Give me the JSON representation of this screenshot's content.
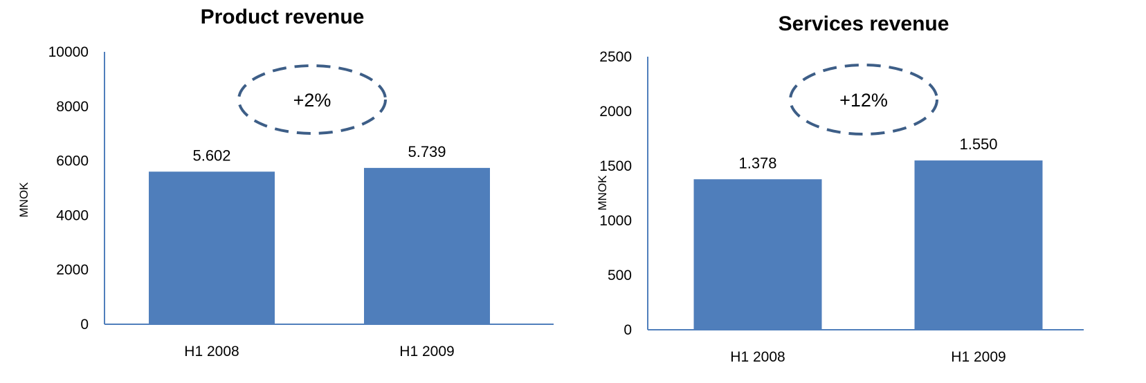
{
  "chart_data": [
    {
      "type": "bar",
      "title": "Product revenue",
      "ylabel": "MNOK",
      "xlabel": "",
      "categories": [
        "H1 2008",
        "H1 2009"
      ],
      "values": [
        5602,
        5739
      ],
      "value_labels": [
        "5.602",
        "5.739"
      ],
      "ylim": [
        0,
        10000
      ],
      "yticks": [
        0,
        2000,
        4000,
        6000,
        8000,
        10000
      ],
      "annotation": "+2%",
      "bar_color": "#4F7EBB",
      "annotation_color": "#3D5E87",
      "grid": false,
      "legend": "none"
    },
    {
      "type": "bar",
      "title": "Services revenue",
      "ylabel": "MNOK",
      "xlabel": "",
      "categories": [
        "H1 2008",
        "H1 2009"
      ],
      "values": [
        1378,
        1550
      ],
      "value_labels": [
        "1.378",
        "1.550"
      ],
      "ylim": [
        0,
        2500
      ],
      "yticks": [
        0,
        500,
        1000,
        1500,
        2000,
        2500
      ],
      "annotation": "+12%",
      "bar_color": "#4F7EBB",
      "annotation_color": "#3D5E87",
      "grid": false,
      "legend": "none"
    }
  ]
}
